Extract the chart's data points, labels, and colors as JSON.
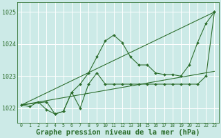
{
  "background_color": "#cceae7",
  "grid_color": "#ffffff",
  "line_color": "#2d6e2d",
  "marker_color": "#2d6e2d",
  "xlabel": "Graphe pression niveau de la mer (hPa)",
  "xlabel_fontsize": 7.5,
  "xlim": [
    -0.5,
    23.5
  ],
  "ylim": [
    1021.55,
    1025.3
  ],
  "yticks": [
    1022,
    1023,
    1024,
    1025
  ],
  "xticks": [
    0,
    1,
    2,
    3,
    4,
    5,
    6,
    7,
    8,
    9,
    10,
    11,
    12,
    13,
    14,
    15,
    16,
    17,
    18,
    19,
    20,
    21,
    22,
    23
  ],
  "series": [
    {
      "x": [
        0,
        1,
        2,
        3,
        4,
        5,
        6,
        7,
        8,
        9,
        10,
        11,
        12,
        13,
        14,
        15,
        16,
        17,
        18,
        19,
        20,
        21,
        22,
        23
      ],
      "y": [
        1022.1,
        1022.05,
        1022.2,
        1021.95,
        1021.82,
        1021.9,
        1022.5,
        1022.75,
        1023.1,
        1023.6,
        1024.1,
        1024.28,
        1024.05,
        1023.6,
        1023.35,
        1023.35,
        1023.1,
        1023.05,
        1023.05,
        1023.0,
        1023.35,
        1024.05,
        1024.65,
        1025.0
      ],
      "has_markers": true
    },
    {
      "x": [
        0,
        3,
        4,
        5,
        6,
        7,
        8,
        9,
        10,
        11,
        12,
        13,
        14,
        15,
        16,
        17,
        18,
        19,
        20,
        21,
        22,
        23
      ],
      "y": [
        1022.1,
        1022.2,
        1021.82,
        1021.9,
        1022.5,
        1022.0,
        1022.75,
        1023.1,
        1022.75,
        1022.75,
        1022.75,
        1022.75,
        1022.75,
        1022.75,
        1022.75,
        1022.75,
        1022.75,
        1022.75,
        1022.75,
        1022.75,
        1023.0,
        1025.0
      ],
      "has_markers": true
    },
    {
      "x": [
        0,
        23
      ],
      "y": [
        1022.1,
        1025.0
      ],
      "has_markers": false
    },
    {
      "x": [
        0,
        23
      ],
      "y": [
        1022.1,
        1023.15
      ],
      "has_markers": false
    }
  ]
}
